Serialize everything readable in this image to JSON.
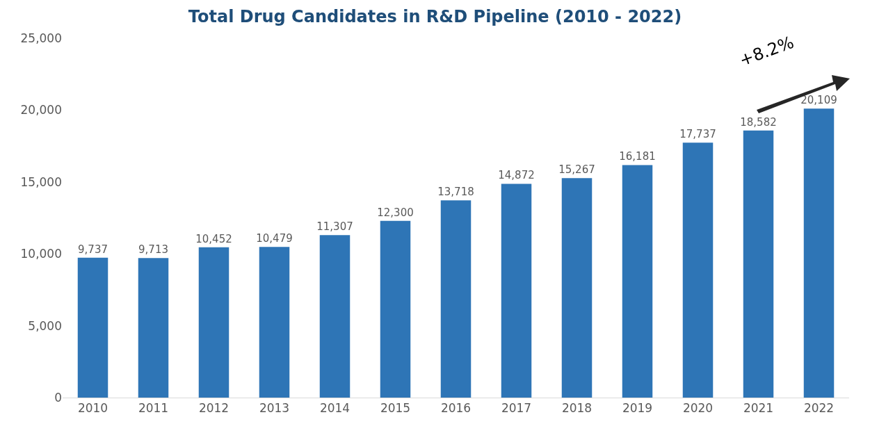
{
  "chart_data": {
    "type": "bar",
    "title": "Total Drug Candidates in R&D Pipeline (2010 - 2022)",
    "categories": [
      "2010",
      "2011",
      "2012",
      "2013",
      "2014",
      "2015",
      "2016",
      "2017",
      "2018",
      "2019",
      "2020",
      "2021",
      "2022"
    ],
    "values": [
      9737,
      9713,
      10452,
      10479,
      11307,
      12300,
      13718,
      14872,
      15267,
      16181,
      17737,
      18582,
      20109
    ],
    "color": "#2e75b6",
    "ylim": [
      0,
      25000
    ],
    "yticks": [
      {
        "value": 0,
        "label": "0"
      },
      {
        "value": 5000,
        "label": "5,000"
      },
      {
        "value": 10000,
        "label": "10,000"
      },
      {
        "value": 15000,
        "label": "15,000"
      },
      {
        "value": 20000,
        "label": "20,000"
      },
      {
        "value": 25000,
        "label": "25,000"
      }
    ],
    "value_labels": [
      "9,737",
      "9,713",
      "10,452",
      "10,479",
      "11,307",
      "12,300",
      "13,718",
      "14,872",
      "15,267",
      "16,181",
      "17,737",
      "18,582",
      "20,109"
    ],
    "grid": false,
    "annotations": [
      "+8.2%"
    ]
  }
}
